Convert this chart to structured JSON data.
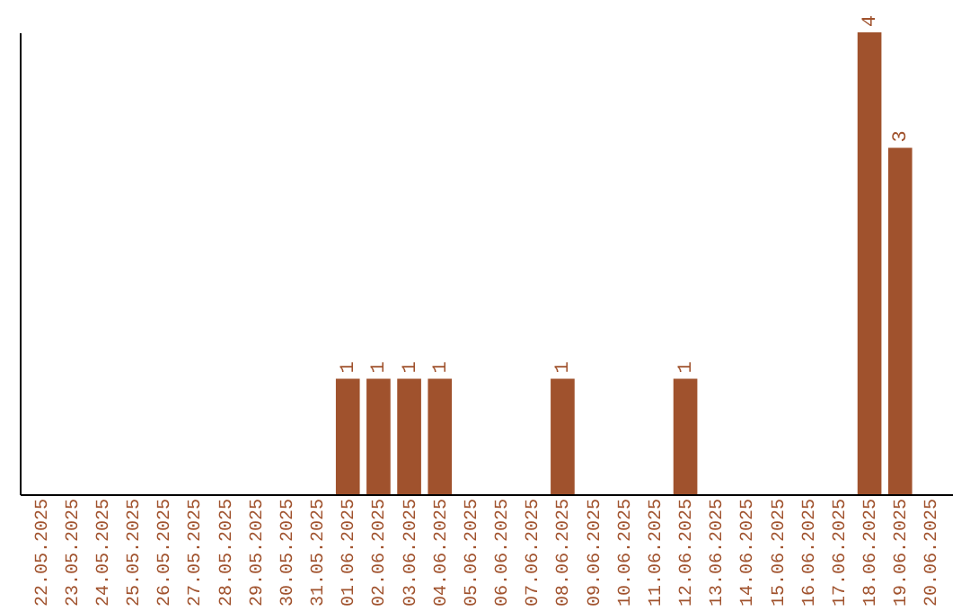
{
  "chart_data": {
    "type": "bar",
    "categories": [
      "22.05.2025",
      "23.05.2025",
      "24.05.2025",
      "25.05.2025",
      "26.05.2025",
      "27.05.2025",
      "28.05.2025",
      "29.05.2025",
      "30.05.2025",
      "31.05.2025",
      "01.06.2025",
      "02.06.2025",
      "03.06.2025",
      "04.06.2025",
      "05.06.2025",
      "06.06.2025",
      "07.06.2025",
      "08.06.2025",
      "09.06.2025",
      "10.06.2025",
      "11.06.2025",
      "12.06.2025",
      "13.06.2025",
      "14.06.2025",
      "15.06.2025",
      "16.06.2025",
      "17.06.2025",
      "18.06.2025",
      "19.06.2025",
      "20.06.2025"
    ],
    "values": [
      0,
      0,
      0,
      0,
      0,
      0,
      0,
      0,
      0,
      0,
      1,
      1,
      1,
      1,
      0,
      0,
      0,
      1,
      0,
      0,
      0,
      1,
      0,
      0,
      0,
      0,
      0,
      4,
      3,
      0
    ],
    "value_labels": [
      null,
      null,
      null,
      null,
      null,
      null,
      null,
      null,
      null,
      null,
      "1",
      "1",
      "1",
      "1",
      null,
      null,
      null,
      "1",
      null,
      null,
      null,
      "1",
      null,
      null,
      null,
      null,
      null,
      "4",
      "3",
      null
    ],
    "color": "#a0522d",
    "grid": false,
    "tick_labels": "x"
  }
}
